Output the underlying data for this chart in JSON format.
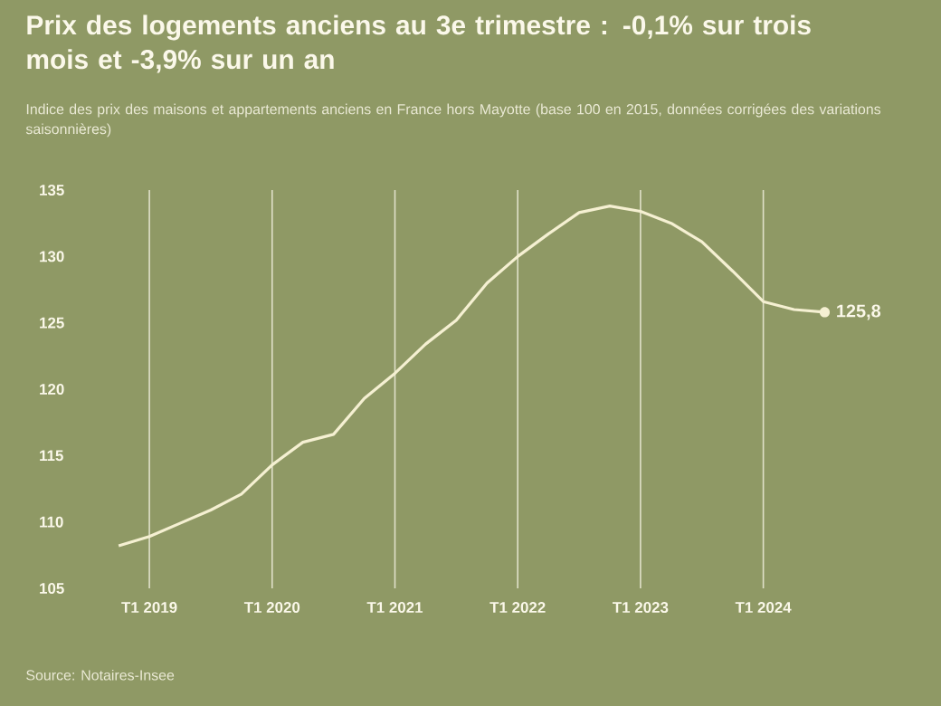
{
  "chart_data": {
    "type": "line",
    "title": "Prix des logements anciens au 3e trimestre : -0,1% sur trois mois et -3,9% sur un an",
    "subtitle": "Indice des prix des maisons et appartements anciens en France hors Mayotte (base 100 en 2015, données corrigées des variations saisonnières)",
    "categories": [
      null,
      "T1 2019",
      null,
      null,
      null,
      "T1 2020",
      null,
      null,
      null,
      "T1 2021",
      null,
      null,
      null,
      "T1 2022",
      null,
      null,
      null,
      "T1 2023",
      null,
      null,
      null,
      "T1 2024",
      null,
      null
    ],
    "series": [
      {
        "color": "#f5f0d2",
        "values": [
          108.2,
          108.9,
          109.9,
          110.9,
          112.1,
          114.3,
          116.0,
          116.6,
          119.3,
          121.2,
          123.4,
          125.2,
          128.0,
          130.0,
          131.7,
          133.3,
          133.8,
          133.4,
          132.5,
          131.1,
          128.9,
          126.6,
          126.0,
          125.8
        ],
        "value_labels": [
          null,
          null,
          null,
          null,
          null,
          null,
          null,
          null,
          null,
          null,
          null,
          null,
          null,
          null,
          null,
          null,
          null,
          null,
          null,
          null,
          null,
          null,
          null,
          "125,8"
        ]
      }
    ],
    "ylim": [
      105,
      135
    ],
    "yticks": [
      105,
      110,
      115,
      120,
      125,
      130,
      135
    ],
    "grid": "x",
    "marker": "none",
    "line_style": "solid",
    "annotations": [
      "Source: Notaires-Insee"
    ]
  }
}
